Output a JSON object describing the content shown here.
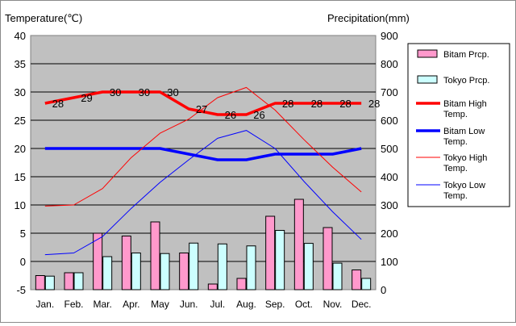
{
  "chart_data": {
    "type": "bar+line",
    "categories": [
      "Jan.",
      "Feb.",
      "Mar.",
      "Apr.",
      "May",
      "Jun.",
      "Jul.",
      "Aug.",
      "Sep.",
      "Oct.",
      "Nov.",
      "Dec."
    ],
    "left_axis": {
      "label": "Temperature(℃)",
      "min": -5,
      "max": 40,
      "step": 5,
      "ticks": [
        "-5",
        "0",
        "5",
        "10",
        "15",
        "20",
        "25",
        "30",
        "35",
        "40"
      ]
    },
    "right_axis": {
      "label": "Precipitation(mm)",
      "min": 0,
      "max": 900,
      "step": 100,
      "ticks": [
        "0",
        "100",
        "200",
        "300",
        "400",
        "500",
        "600",
        "700",
        "800",
        "900"
      ]
    },
    "bars": [
      {
        "name": "Bitam Prcp.",
        "color": "#ff99cc",
        "values": [
          50,
          60,
          200,
          190,
          240,
          130,
          20,
          40,
          260,
          320,
          220,
          70
        ]
      },
      {
        "name": "Tokyo Prcp.",
        "color": "#ccffff",
        "values": [
          48,
          60,
          117,
          130,
          128,
          165,
          162,
          155,
          210,
          164,
          94,
          40
        ]
      }
    ],
    "lines": [
      {
        "name": "Bitam High Temp.",
        "color": "#ff0000",
        "width": 3.5,
        "values": [
          28,
          29,
          30,
          30,
          30,
          27,
          26,
          26,
          28,
          28,
          28,
          28
        ],
        "labels": [
          "28",
          "29",
          "30",
          "30",
          "30",
          "27",
          "26",
          "26",
          "28",
          "28",
          "28",
          "28"
        ]
      },
      {
        "name": "Bitam Low Temp.",
        "color": "#0000ff",
        "width": 3.5,
        "values": [
          20,
          20,
          20,
          20,
          20,
          19,
          18,
          18,
          19,
          19,
          19,
          20
        ]
      },
      {
        "name": "Tokyo High Temp.",
        "color": "#ff0000",
        "width": 1,
        "values": [
          9.8,
          10,
          12.9,
          18.4,
          22.7,
          25.2,
          29,
          30.8,
          26.8,
          21.6,
          16.7,
          12.3
        ]
      },
      {
        "name": "Tokyo Low Temp.",
        "color": "#0000ff",
        "width": 1,
        "values": [
          1.2,
          1.5,
          4.4,
          9.4,
          14,
          18,
          21.8,
          23.2,
          20,
          14.2,
          8.8,
          3.9
        ]
      }
    ],
    "legend": {
      "position": "right",
      "items": [
        {
          "label1": "Bitam Prcp.",
          "label2": ""
        },
        {
          "label1": "Tokyo Prcp.",
          "label2": ""
        },
        {
          "label1": "Bitam High",
          "label2": "Temp."
        },
        {
          "label1": "Bitam Low",
          "label2": "Temp."
        },
        {
          "label1": "Tokyo High",
          "label2": "Temp."
        },
        {
          "label1": "Tokyo Low",
          "label2": "Temp."
        }
      ]
    },
    "plot_background": "#c0c0c0",
    "grid": true
  }
}
